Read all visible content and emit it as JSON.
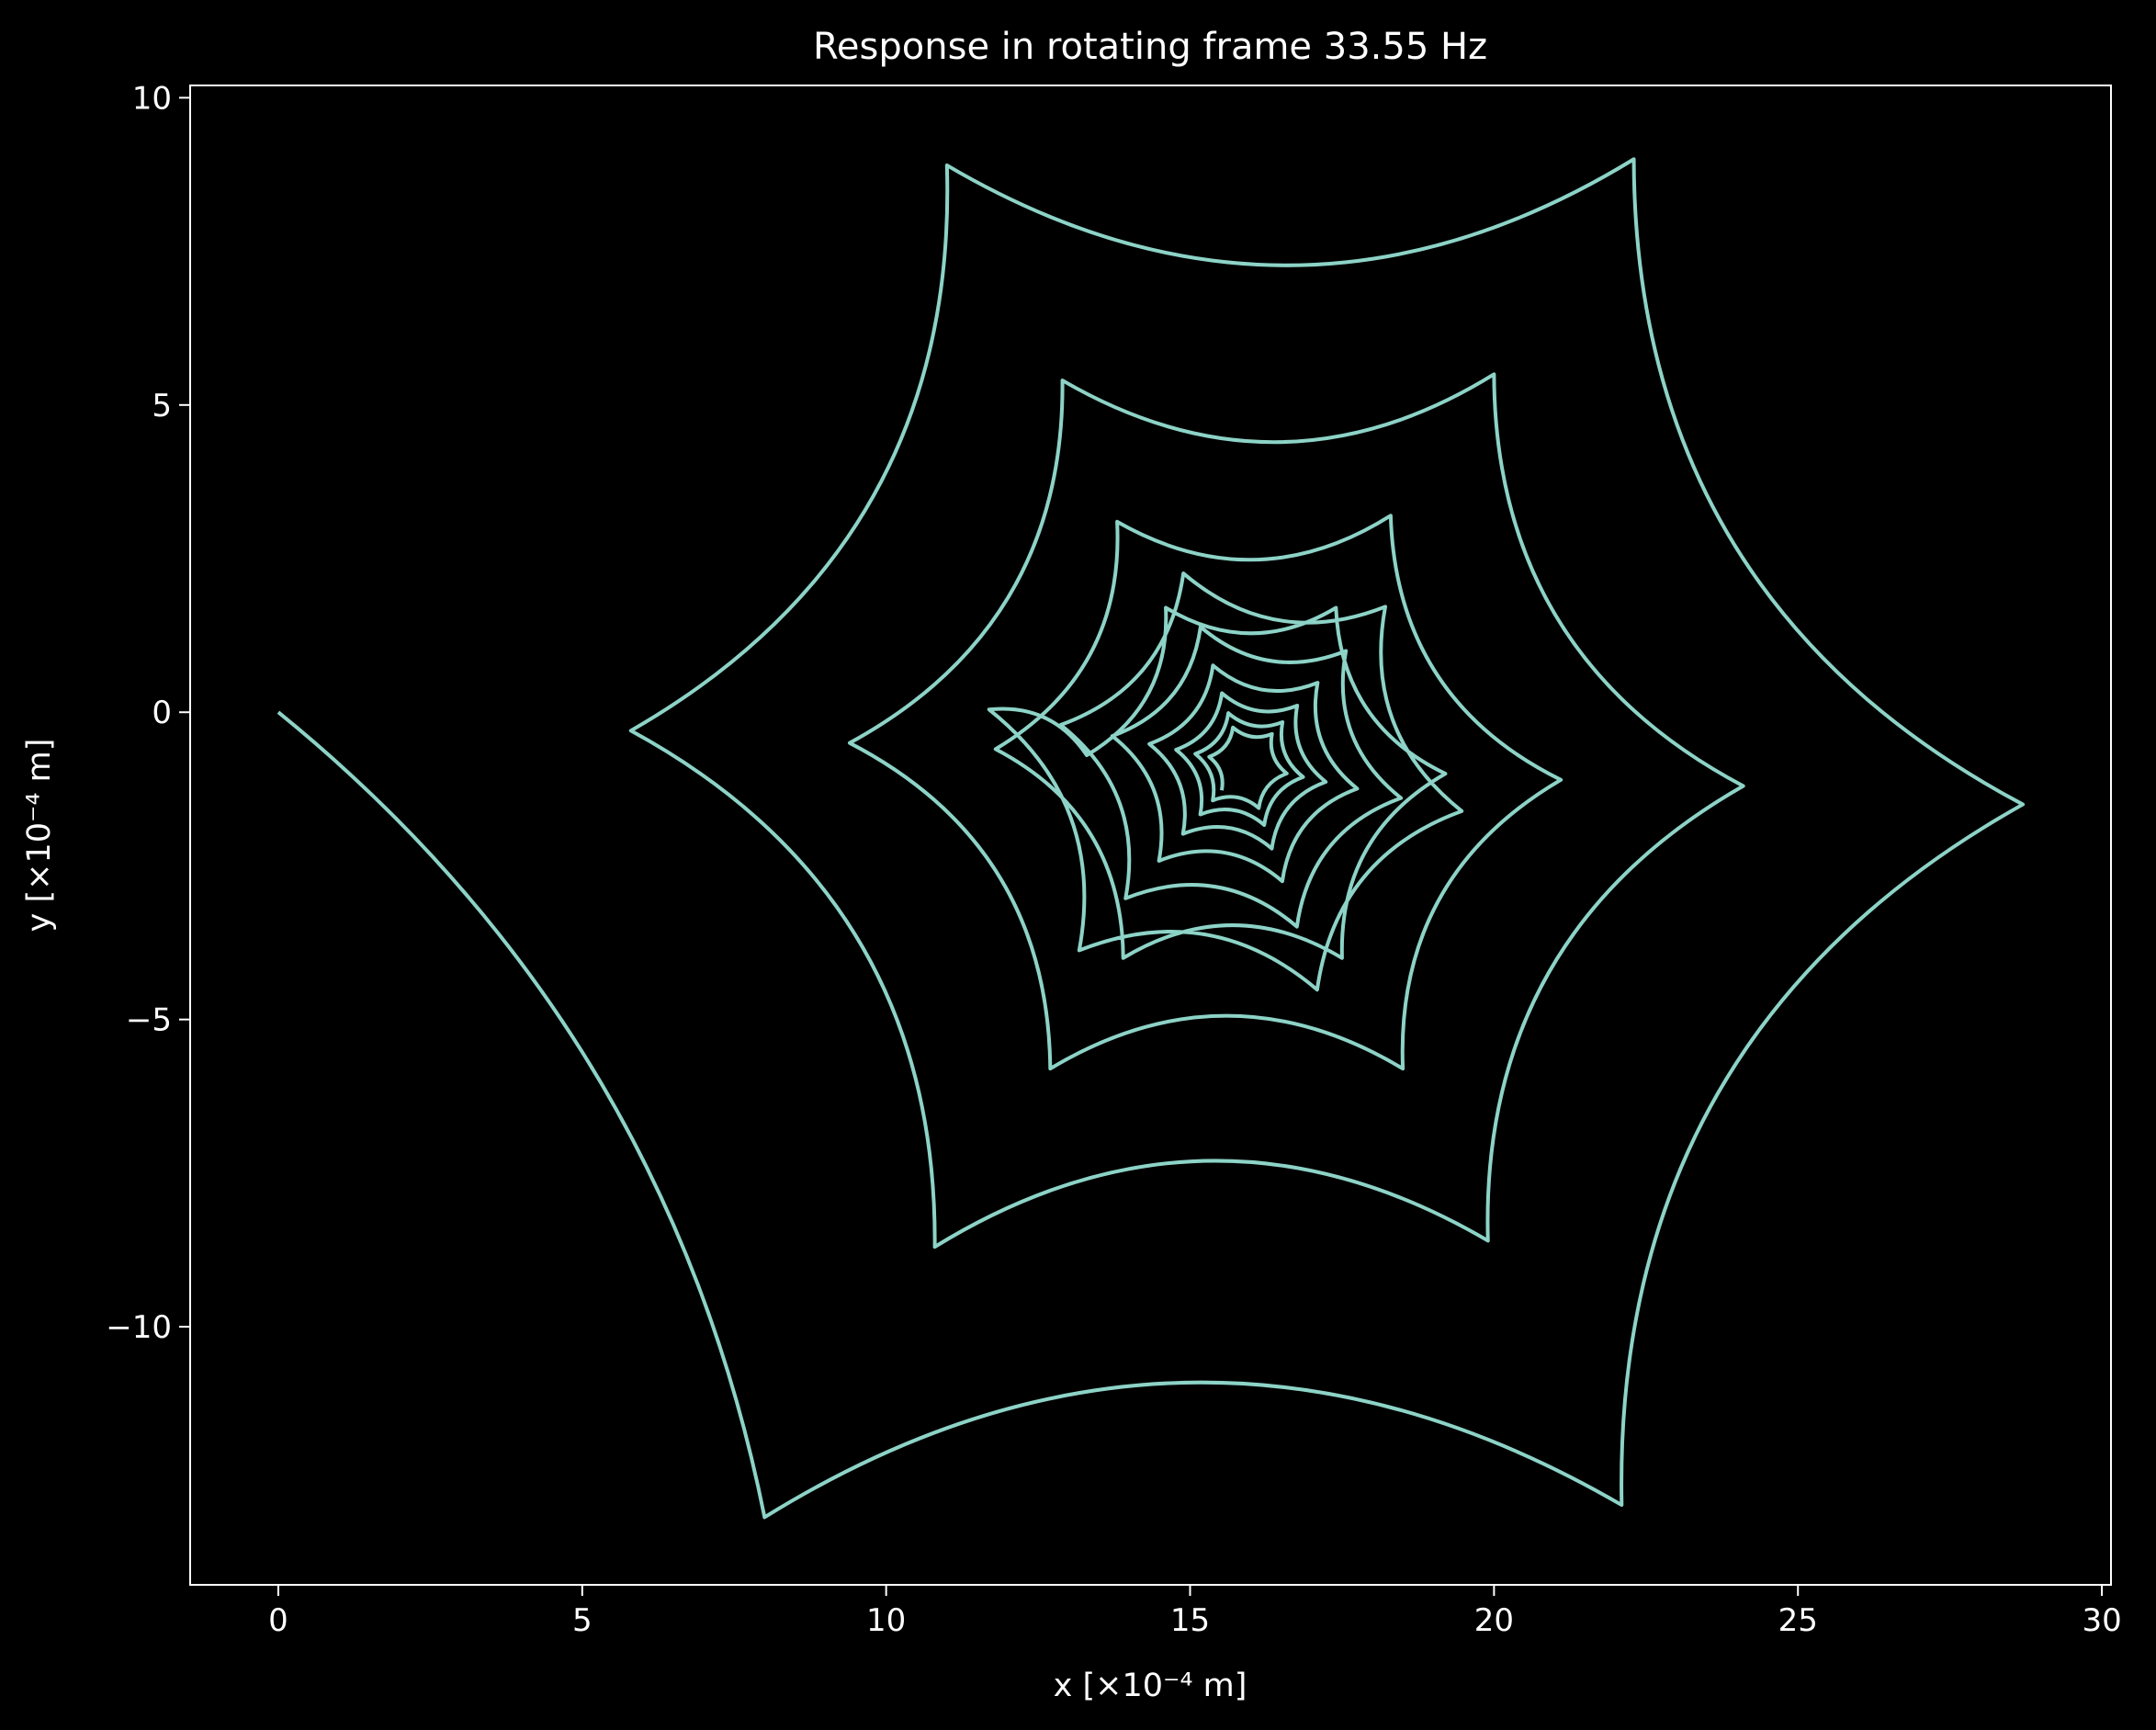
{
  "chart_data": {
    "type": "line",
    "title": "Response in rotating frame 33.55 Hz",
    "xlabel": "x [×10⁻⁴ m]",
    "ylabel": "y [×10⁻⁴ m]",
    "xlim": [
      -1.45,
      30.15
    ],
    "ylim": [
      -14.2,
      10.2
    ],
    "xticks": [
      {
        "value": 0,
        "label": "0"
      },
      {
        "value": 5,
        "label": "5"
      },
      {
        "value": 10,
        "label": "10"
      },
      {
        "value": 15,
        "label": "15"
      },
      {
        "value": 20,
        "label": "20"
      },
      {
        "value": 25,
        "label": "25"
      },
      {
        "value": 30,
        "label": "30"
      }
    ],
    "yticks": [
      {
        "value": 10,
        "label": "10"
      },
      {
        "value": 5,
        "label": "5"
      },
      {
        "value": 0,
        "label": "0"
      },
      {
        "value": -5,
        "label": "−5"
      },
      {
        "value": -10,
        "label": "−10"
      }
    ],
    "grid": false,
    "legend": "none",
    "series": [
      {
        "color": "#8dd3c7",
        "generator": "decaying_epicycloid_spiral",
        "params": {
          "center": [
            15.9,
            -0.85
          ],
          "initial_point": [
            0,
            0
          ],
          "initial_radius": 16.0,
          "decay_per_lobe": 0.72,
          "lobes_per_turn": 6,
          "lobe_count": 62,
          "first_cusp_angle_deg": 168,
          "lobe_angle_deg": 60,
          "bulge": 0.3,
          "cusps": [
            [
              8.0,
              -13.1
            ],
            [
              22.1,
              -12.9
            ],
            [
              28.7,
              -1.5
            ],
            [
              22.3,
              9.0
            ],
            [
              11.0,
              8.9
            ],
            [
              5.8,
              -0.3
            ],
            [
              10.8,
              -8.7
            ],
            [
              19.9,
              -8.6
            ],
            [
              24.1,
              -1.2
            ],
            [
              20.0,
              5.5
            ],
            [
              12.9,
              5.4
            ],
            [
              9.4,
              -0.5
            ],
            [
              12.7,
              -5.8
            ],
            [
              18.5,
              -5.8
            ],
            [
              21.1,
              -1.1
            ],
            [
              18.3,
              3.2
            ],
            [
              13.8,
              3.1
            ],
            [
              11.8,
              -0.6
            ],
            [
              13.9,
              -4.0
            ],
            [
              17.5,
              -4.0
            ],
            [
              19.2,
              -1.0
            ],
            [
              17.4,
              1.7
            ],
            [
              14.6,
              1.7
            ],
            [
              13.3,
              -0.7
            ]
          ]
        }
      }
    ]
  }
}
